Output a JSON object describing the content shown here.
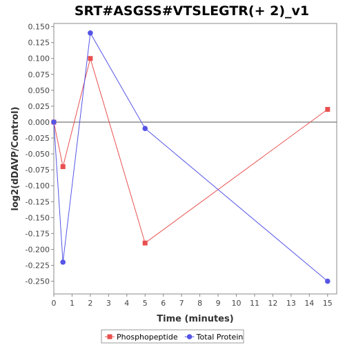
{
  "chart_data": {
    "type": "line",
    "title": "SRT#ASGSS#VTSLEGTR(+ 2)_v1",
    "xlabel": "Time (minutes)",
    "ylabel": "log2(dDAVP/Control)",
    "xlim": [
      0,
      15.5
    ],
    "ylim": [
      -0.27,
      0.155
    ],
    "xticks": [
      "0",
      "1",
      "2",
      "3",
      "4",
      "5",
      "6",
      "7",
      "8",
      "9",
      "10",
      "11",
      "12",
      "13",
      "14",
      "15"
    ],
    "yticks": [
      "0.150",
      "0.125",
      "0.100",
      "0.075",
      "0.050",
      "0.025",
      "0.000",
      "-0.025",
      "-0.050",
      "-0.075",
      "-0.100",
      "-0.125",
      "-0.150",
      "-0.175",
      "-0.200",
      "-0.225",
      "-0.250"
    ],
    "grid": false,
    "zero_line": true,
    "legend_position": "bottom",
    "series": [
      {
        "name": "Phosphopeptide",
        "color": "#e8504f",
        "marker": "square",
        "x": [
          0,
          0.5,
          2,
          5,
          15
        ],
        "y": [
          0.0,
          -0.07,
          0.1,
          -0.19,
          0.02
        ]
      },
      {
        "name": "Total Protein",
        "color": "#5555e6",
        "marker": "circle",
        "x": [
          0,
          0.5,
          2,
          5,
          15
        ],
        "y": [
          0.0,
          -0.22,
          0.14,
          -0.01,
          -0.25
        ]
      }
    ]
  }
}
